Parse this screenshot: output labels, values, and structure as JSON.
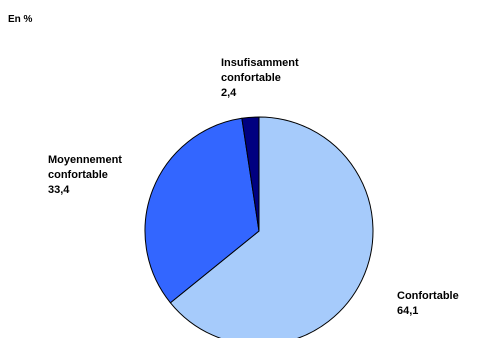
{
  "chart_data": {
    "type": "pie",
    "unit_label": "En %",
    "slices": [
      {
        "label_lines": [
          "Confortable"
        ],
        "value": 64.1,
        "value_text": "64,1",
        "color": "#a6cbfb"
      },
      {
        "label_lines": [
          "Moyennement",
          "confortable"
        ],
        "value": 33.4,
        "value_text": "33,4",
        "color": "#3366ff"
      },
      {
        "label_lines": [
          "Insufisamment",
          "confortable"
        ],
        "value": 2.4,
        "value_text": "2,4",
        "color": "#000080"
      }
    ],
    "start_angle_deg": 0,
    "direction": "clockwise",
    "edge_color": "#000000"
  }
}
